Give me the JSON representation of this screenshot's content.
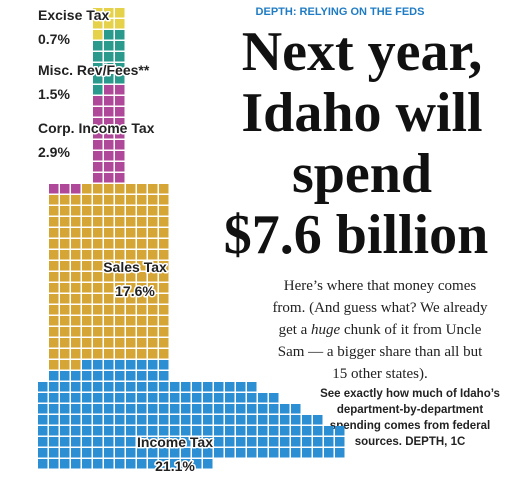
{
  "chart_data": {
    "type": "waffle",
    "kicker": "DEPTH: RELYING ON THE FEDS",
    "title": [
      "Next year,",
      "Idaho will",
      "spend",
      "$7.6 billion"
    ],
    "subtitle": [
      "Here’s where that money comes",
      "from. (And guess what? We already",
      [
        "get a ",
        "huge",
        " chunk of it from Uncle"
      ],
      "Sam — a bigger share than all but",
      "15 other states)."
    ],
    "note": [
      "See exactly how much of Idaho’s",
      "department-by-department",
      "spending comes from federal",
      "sources. DEPTH, 1C"
    ],
    "categories": [
      "Excise Tax",
      "Misc. Rev/Fees**",
      "Corp. Income Tax",
      "Sales Tax",
      "Income Tax"
    ],
    "values": [
      0.7,
      1.5,
      2.9,
      17.6,
      21.1
    ],
    "value_labels": [
      "0.7%",
      "1.5%",
      "2.9%",
      "17.6%",
      "21.1%"
    ],
    "colors": [
      "#e6d24a",
      "#2a9a8c",
      "#b0489a",
      "#d5a535",
      "#2c8fd3"
    ]
  }
}
